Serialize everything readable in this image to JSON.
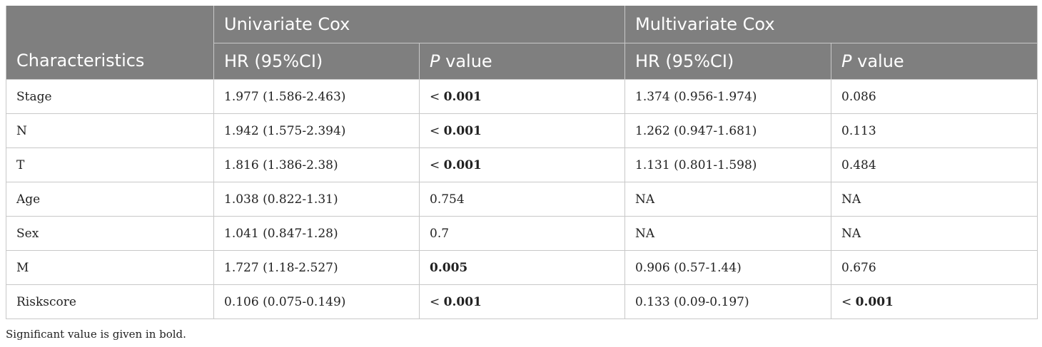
{
  "table": {
    "headers": {
      "characteristics": "Characteristics",
      "univariate": "Univariate Cox",
      "multivariate": "Multivariate Cox",
      "hr": "HR (95%CI)",
      "p_italic": "P",
      "p_rest": " value"
    },
    "rows": [
      {
        "name": "Stage",
        "uni_hr": "1.977 (1.586-2.463)",
        "uni_p_prefix": "< ",
        "uni_p": "0.001",
        "uni_bold": true,
        "multi_hr": "1.374 (0.956-1.974)",
        "multi_p_prefix": "",
        "multi_p": "0.086",
        "multi_bold": false
      },
      {
        "name": "N",
        "uni_hr": "1.942 (1.575-2.394)",
        "uni_p_prefix": "< ",
        "uni_p": "0.001",
        "uni_bold": true,
        "multi_hr": "1.262 (0.947-1.681)",
        "multi_p_prefix": "",
        "multi_p": "0.113",
        "multi_bold": false
      },
      {
        "name": "T",
        "uni_hr": "1.816 (1.386-2.38)",
        "uni_p_prefix": "< ",
        "uni_p": "0.001",
        "uni_bold": true,
        "multi_hr": "1.131 (0.801-1.598)",
        "multi_p_prefix": "",
        "multi_p": "0.484",
        "multi_bold": false
      },
      {
        "name": "Age",
        "uni_hr": "1.038 (0.822-1.31)",
        "uni_p_prefix": "",
        "uni_p": "0.754",
        "uni_bold": false,
        "multi_hr": "NA",
        "multi_p_prefix": "",
        "multi_p": "NA",
        "multi_bold": false
      },
      {
        "name": "Sex",
        "uni_hr": "1.041 (0.847-1.28)",
        "uni_p_prefix": "",
        "uni_p": "0.7",
        "uni_bold": false,
        "multi_hr": "NA",
        "multi_p_prefix": "",
        "multi_p": "NA",
        "multi_bold": false
      },
      {
        "name": "M",
        "uni_hr": "1.727 (1.18-2.527)",
        "uni_p_prefix": "",
        "uni_p": "0.005",
        "uni_bold": true,
        "multi_hr": "0.906 (0.57-1.44)",
        "multi_p_prefix": "",
        "multi_p": "0.676",
        "multi_bold": false
      },
      {
        "name": "Riskscore",
        "uni_hr": "0.106 (0.075-0.149)",
        "uni_p_prefix": "< ",
        "uni_p": "0.001",
        "uni_bold": true,
        "multi_hr": "0.133 (0.09-0.197)",
        "multi_p_prefix": "< ",
        "multi_p": "0.001",
        "multi_bold": true
      }
    ]
  },
  "footnote": "Significant value is given in bold."
}
